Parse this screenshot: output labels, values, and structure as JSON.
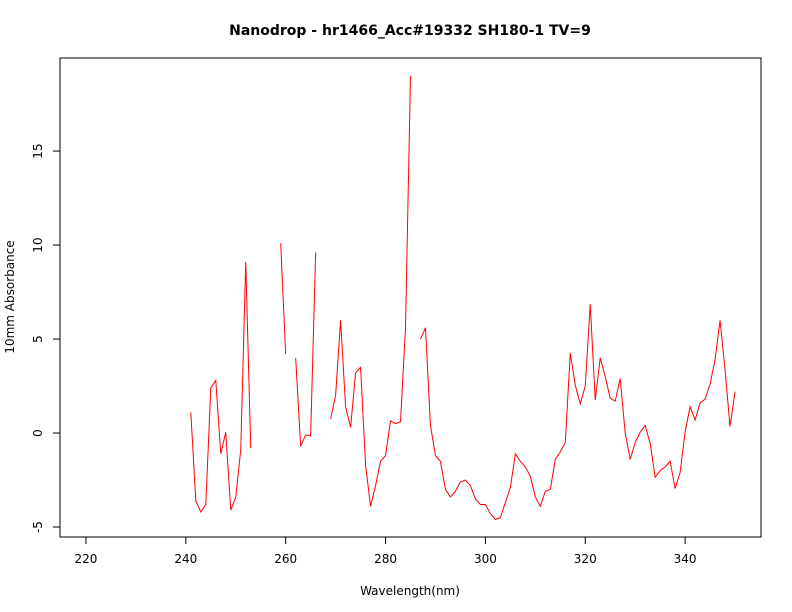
{
  "chart_data": {
    "type": "line",
    "title": "Nanodrop - hr1466_Acc#19332 SH180-1 TV=9",
    "x_label": "Wavelength(nm)",
    "y_label": "10mm Absorbance",
    "x": [
      241,
      242,
      243,
      244,
      245,
      246,
      247,
      248,
      249,
      250,
      251,
      252,
      253,
      254,
      255,
      256,
      257,
      258,
      259,
      260,
      261,
      262,
      263,
      264,
      265,
      266,
      267,
      268,
      269,
      270,
      271,
      272,
      273,
      274,
      275,
      276,
      277,
      278,
      279,
      280,
      281,
      282,
      283,
      284,
      285,
      286,
      287,
      288,
      289,
      290,
      291,
      292,
      293,
      294,
      295,
      296,
      297,
      298,
      299,
      300,
      301,
      302,
      303,
      304,
      305,
      306,
      307,
      308,
      309,
      310,
      311,
      312,
      313,
      314,
      315,
      316,
      317,
      318,
      319,
      320,
      321,
      322,
      323,
      324,
      325,
      326,
      327,
      328,
      329,
      330,
      331,
      332,
      333,
      334,
      335,
      336,
      337,
      338,
      339,
      340,
      341,
      342,
      343,
      344,
      345,
      346,
      347,
      348,
      349,
      350
    ],
    "series": [
      {
        "color": "#ff0000",
        "values": [
          1.1,
          -3.6,
          -4.2,
          -3.8,
          2.4,
          2.8,
          -1.1,
          0.05,
          -4.1,
          -3.4,
          -0.9,
          9.1,
          -0.8,
          null,
          null,
          null,
          null,
          null,
          10.1,
          4.2,
          null,
          4.0,
          -0.7,
          -0.1,
          -0.15,
          9.6,
          null,
          null,
          0.75,
          2.0,
          6.0,
          1.4,
          0.3,
          3.2,
          3.5,
          -1.7,
          -3.9,
          -2.8,
          -1.5,
          -1.2,
          0.65,
          0.5,
          0.6,
          5.6,
          19.0,
          null,
          5.0,
          5.6,
          0.4,
          -1.2,
          -1.5,
          -3.0,
          -3.4,
          -3.1,
          -2.6,
          -2.5,
          -2.8,
          -3.5,
          -3.8,
          -3.8,
          -4.3,
          -4.6,
          -4.5,
          -3.7,
          -2.9,
          -1.1,
          -1.5,
          -1.8,
          -2.3,
          -3.4,
          -3.9,
          -3.1,
          -3.0,
          -1.4,
          -1.0,
          -0.5,
          4.25,
          2.55,
          1.55,
          2.5,
          6.85,
          1.75,
          4.0,
          3.0,
          1.85,
          1.7,
          2.9,
          0,
          -1.4,
          -0.5,
          0.05,
          0.4,
          -0.55,
          -2.35,
          -2.0,
          -1.8,
          -1.5,
          -2.95,
          -2.1,
          0.05,
          1.4,
          0.7,
          1.6,
          1.8,
          2.6,
          3.9,
          6.0,
          3.35,
          0.35,
          2.2
        ]
      }
    ],
    "xlim": [
      214.8,
      355.2
    ],
    "xticks": [
      220,
      240,
      260,
      280,
      300,
      320,
      340
    ],
    "ylim": [
      -5.53,
      19.95
    ],
    "yticks": [
      -5,
      0,
      5,
      10,
      15
    ],
    "grid": false
  }
}
